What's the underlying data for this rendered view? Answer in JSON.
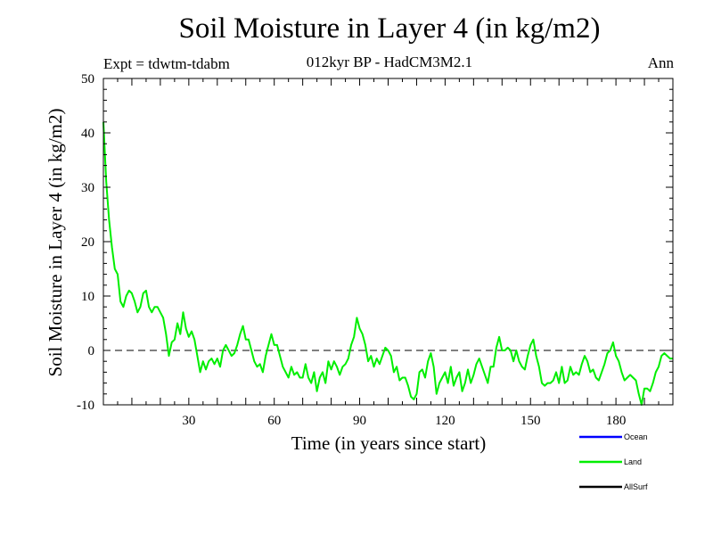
{
  "chart_data": {
    "type": "line",
    "title": "Soil Moisture in Layer 4 (in kg/m2)",
    "subtitle": "012kyr BP - HadCM3M2.1",
    "experiment": "Expt = tdwtm-tdabm",
    "period": "Ann",
    "xlabel": "Time (in years since start)",
    "ylabel": "Soil Moisture in Layer 4 (in kg/m2)",
    "xlim": [
      0,
      200
    ],
    "ylim": [
      -10,
      50
    ],
    "xticks": [
      30,
      60,
      90,
      120,
      150,
      180
    ],
    "yticks": [
      50,
      40,
      30,
      20,
      10,
      0,
      -10
    ],
    "zero_line": 0,
    "legend": [
      {
        "name": "Ocean",
        "color": "#0000ff"
      },
      {
        "name": "Land",
        "color": "#00ee00"
      },
      {
        "name": "AllSurf",
        "color": "#000000"
      }
    ],
    "series": [
      {
        "name": "Land",
        "color": "#00ee00",
        "x": [
          0,
          1,
          2,
          3,
          4,
          5,
          6,
          7,
          8,
          9,
          10,
          11,
          12,
          13,
          14,
          15,
          16,
          17,
          18,
          19,
          20,
          21,
          22,
          23,
          24,
          25,
          26,
          27,
          28,
          29,
          30,
          31,
          32,
          33,
          34,
          35,
          36,
          37,
          38,
          39,
          40,
          41,
          42,
          43,
          44,
          45,
          46,
          47,
          48,
          49,
          50,
          51,
          52,
          53,
          54,
          55,
          56,
          57,
          58,
          59,
          60,
          61,
          62,
          63,
          64,
          65,
          66,
          67,
          68,
          69,
          70,
          71,
          72,
          73,
          74,
          75,
          76,
          77,
          78,
          79,
          80,
          81,
          82,
          83,
          84,
          85,
          86,
          87,
          88,
          89,
          90,
          91,
          92,
          93,
          94,
          95,
          96,
          97,
          98,
          99,
          100,
          101,
          102,
          103,
          104,
          105,
          106,
          107,
          108,
          109,
          110,
          111,
          112,
          113,
          114,
          115,
          116,
          117,
          118,
          119,
          120,
          121,
          122,
          123,
          124,
          125,
          126,
          127,
          128,
          129,
          130,
          131,
          132,
          133,
          134,
          135,
          136,
          137,
          138,
          139,
          140,
          141,
          142,
          143,
          144,
          145,
          146,
          147,
          148,
          149,
          150,
          151,
          152,
          153,
          154,
          155,
          156,
          157,
          158,
          159,
          160,
          161,
          162,
          163,
          164,
          165,
          166,
          167,
          168,
          169,
          170,
          171,
          172,
          173,
          174,
          175,
          176,
          177,
          178,
          179,
          180,
          181,
          182,
          183,
          184,
          185,
          186,
          187,
          188,
          189,
          190,
          191,
          192,
          193,
          194,
          195,
          196,
          197,
          198,
          199,
          200
        ],
        "values": [
          42,
          31,
          24,
          19,
          15,
          14,
          9,
          8,
          10,
          11,
          10.5,
          9,
          7,
          8,
          10.5,
          11,
          8,
          7,
          8,
          8,
          7,
          6,
          3,
          -1,
          1.5,
          2,
          5,
          3,
          7,
          4,
          2.5,
          3.5,
          2,
          -1,
          -4,
          -2,
          -3.5,
          -2,
          -1.5,
          -2.5,
          -1.5,
          -3,
          0,
          1,
          0,
          -1,
          -0.5,
          1,
          3,
          4.5,
          2,
          2,
          0,
          -2,
          -3,
          -2.5,
          -4,
          -1,
          1,
          3,
          1,
          1,
          -1,
          -3,
          -4,
          -5,
          -3,
          -4.5,
          -4,
          -5,
          -5,
          -2.5,
          -5,
          -6,
          -4,
          -7.5,
          -5,
          -4,
          -6,
          -2,
          -3.5,
          -2,
          -3,
          -4.5,
          -3,
          -2.5,
          -1.5,
          1,
          2.5,
          6,
          4,
          3,
          1,
          -2,
          -1,
          -3,
          -1.5,
          -2.5,
          -1,
          0.5,
          0,
          -1,
          -4,
          -3,
          -5.5,
          -5,
          -5,
          -6.5,
          -8.5,
          -9,
          -8,
          -4,
          -3.5,
          -5,
          -2,
          -0.5,
          -3,
          -8,
          -6,
          -5,
          -4,
          -6,
          -3,
          -6.5,
          -5,
          -4,
          -7.5,
          -6,
          -3.5,
          -6,
          -4.5,
          -2.5,
          -1.5,
          -3,
          -4.5,
          -6,
          -3,
          -3,
          0.5,
          2.5,
          0,
          0,
          0.5,
          0,
          -2,
          0,
          -2,
          -3,
          -3.5,
          -1,
          1,
          2,
          -1,
          -3,
          -6,
          -6.5,
          -6,
          -6,
          -5.5,
          -4,
          -6,
          -3,
          -6,
          -5.5,
          -3,
          -4.5,
          -4,
          -4.5,
          -2.5,
          -1,
          -2,
          -4,
          -3.5,
          -5,
          -5.5,
          -4,
          -2.5,
          -0.5,
          0,
          1.5,
          -1,
          -2,
          -4,
          -5.5,
          -5,
          -4.5,
          -5,
          -5.5,
          -8,
          -10,
          -7,
          -7,
          -7.5,
          -6,
          -4,
          -3,
          -1,
          -0.5,
          -1,
          -1.5,
          -1.5
        ]
      }
    ]
  }
}
